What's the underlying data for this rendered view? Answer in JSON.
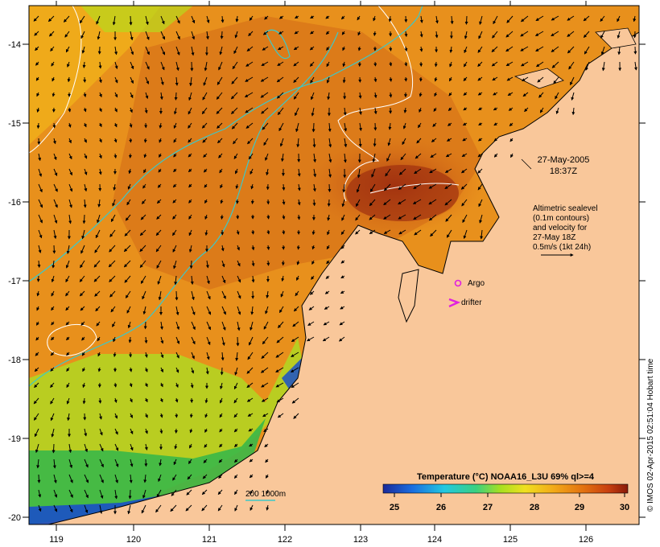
{
  "timestamp": {
    "date": "27-May-2005",
    "time": "18:37Z"
  },
  "altimetry_note": [
    "Altimetric sealevel",
    "(0.1m contours)",
    "and velocity for",
    "27-May 18Z",
    "0.5m/s (1kt 24h)"
  ],
  "legend": {
    "argo": "Argo",
    "drifter": "drifter"
  },
  "bathymetry_label": "200  1000m",
  "credit": "© IMOS 02-Apr-2015 02:51:04 Hobart time",
  "colorbar": {
    "title": "Temperature (°C) NOAA16_L3U 69% ql>=4",
    "ticks": [
      "25",
      "26",
      "27",
      "28",
      "29",
      "30"
    ],
    "min": 25,
    "max": 30
  },
  "axes": {
    "lon_ticks": [
      "119",
      "120",
      "121",
      "122",
      "123",
      "124",
      "125",
      "126"
    ],
    "lat_ticks": [
      "-14",
      "-15",
      "-16",
      "-17",
      "-18",
      "-19",
      "-20"
    ]
  },
  "colors": {
    "land": "#f9c79a",
    "warm": "#b84a14",
    "mid": "#e98a1a",
    "cool": "#7cc820",
    "cold": "#1a50c8",
    "argo": "#e020e0",
    "contour_white": "#ffffff",
    "isobath": "#3cc8c8"
  }
}
